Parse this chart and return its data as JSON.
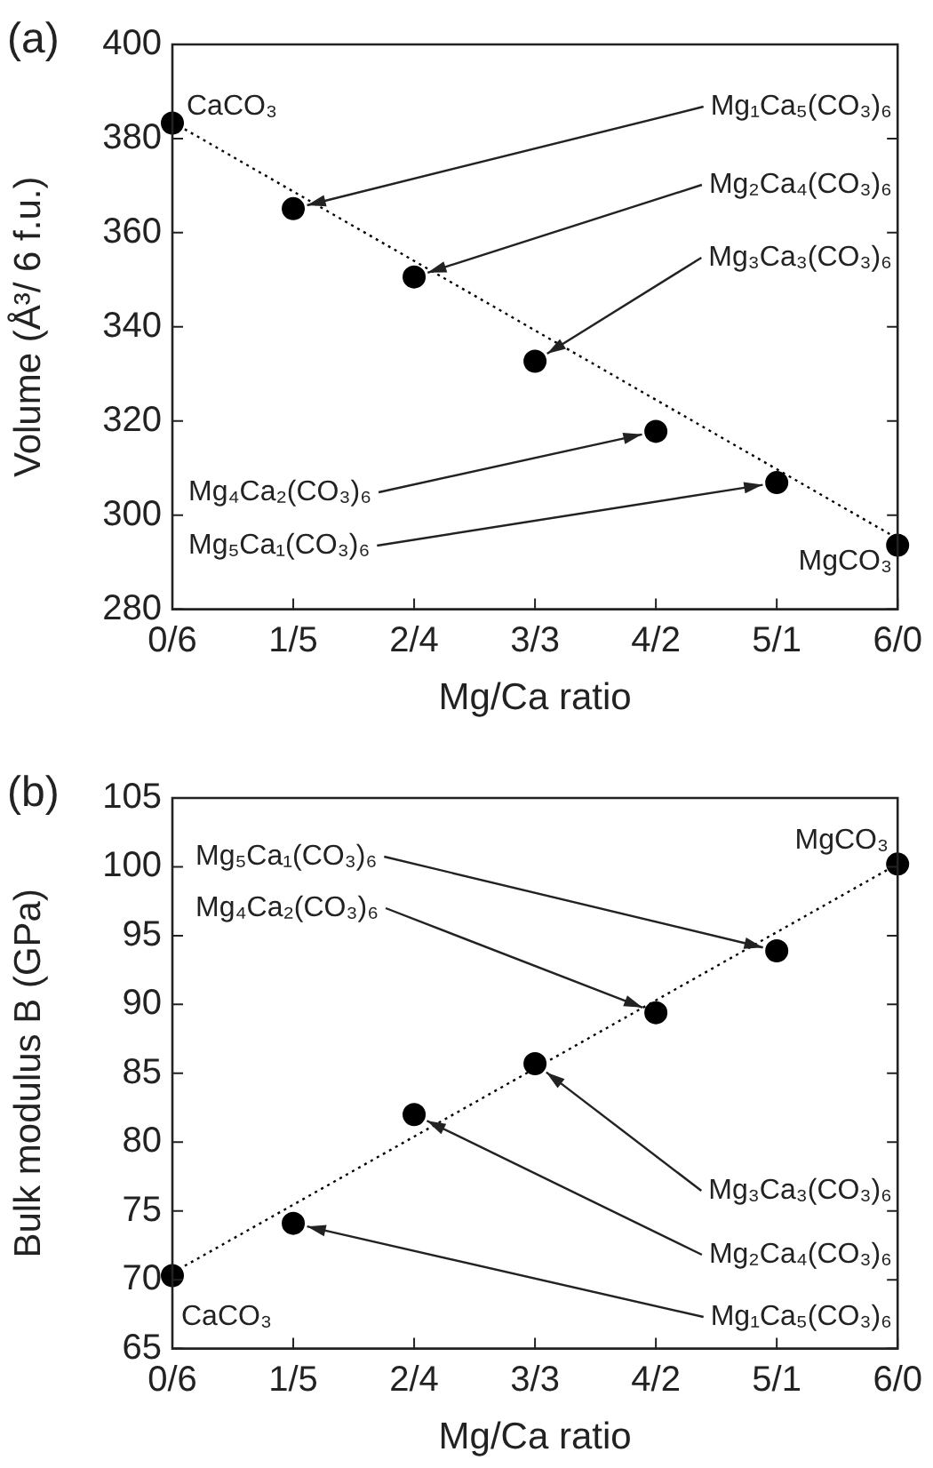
{
  "chart_data": [
    {
      "type": "scatter",
      "title": "(a)",
      "xlabel": "Mg/Ca ratio",
      "ylabel": "Volume (Å³/ 6 f.u.)",
      "categories": [
        "0/6",
        "1/5",
        "2/4",
        "3/3",
        "4/2",
        "5/1",
        "6/0"
      ],
      "ylim": [
        280,
        400
      ],
      "yticks": [
        280,
        300,
        320,
        340,
        360,
        380,
        400
      ],
      "grid": false,
      "legend": false,
      "marker": "circle",
      "series": [
        {
          "color": "#000000",
          "values": [
            383.3,
            365.1,
            350.6,
            332.7,
            317.8,
            306.9,
            293.6
          ]
        },
        {
          "type": "line",
          "line_style": "dotted",
          "marker": "none",
          "color": "#000000",
          "values": [
            383.5,
            null,
            null,
            null,
            null,
            null,
            295
          ]
        }
      ],
      "annotations": [
        "CaCO₃",
        {
          "text": "Mg₁Ca₅(CO₃)₆",
          "x": "1/5",
          "y": 365.1
        },
        {
          "text": "Mg₂Ca₄(CO₃)₆",
          "x": "2/4",
          "y": 350.6
        },
        {
          "text": "Mg₃Ca₃(CO₃)₆",
          "x": "3/3",
          "y": 332.7
        },
        {
          "text": "Mg₄Ca₂(CO₃)₆",
          "x": "4/2",
          "y": 317.8
        },
        {
          "text": "Mg₅Ca₁(CO₃)₆",
          "x": "5/1",
          "y": 306.9
        },
        "MgCO₃"
      ]
    },
    {
      "type": "scatter",
      "title": "(b)",
      "xlabel": "Mg/Ca ratio",
      "ylabel": "Bulk modulus B (GPa)",
      "categories": [
        "0/6",
        "1/5",
        "2/4",
        "3/3",
        "4/2",
        "5/1",
        "6/0"
      ],
      "ylim": [
        65,
        105
      ],
      "yticks": [
        65,
        70,
        75,
        80,
        85,
        90,
        95,
        100,
        105
      ],
      "grid": false,
      "legend": false,
      "marker": "circle",
      "series": [
        {
          "color": "#000000",
          "values": [
            70.3,
            74.1,
            82.0,
            85.7,
            89.4,
            93.9,
            100.2
          ]
        },
        {
          "type": "line",
          "line_style": "dotted",
          "marker": "none",
          "color": "#000000",
          "values": [
            70.5,
            null,
            null,
            null,
            null,
            null,
            100.2
          ]
        }
      ],
      "annotations": [
        "MgCO₃",
        {
          "text": "Mg₅Ca₁(CO₃)₆",
          "x": "5/1",
          "y": 93.9
        },
        {
          "text": "Mg₄Ca₂(CO₃)₆",
          "x": "4/2",
          "y": 89.4
        },
        {
          "text": "Mg₃Ca₃(CO₃)₆",
          "x": "3/3",
          "y": 85.7
        },
        {
          "text": "Mg₂Ca₄(CO₃)₆",
          "x": "2/4",
          "y": 82.0
        },
        {
          "text": "Mg₁Ca₅(CO₃)₆",
          "x": "1/5",
          "y": 74.1
        },
        "CaCO₃"
      ]
    }
  ]
}
